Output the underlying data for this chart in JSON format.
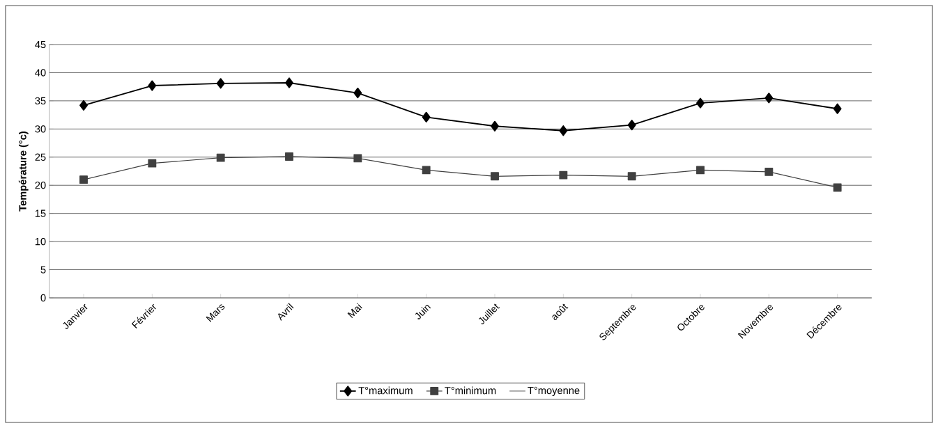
{
  "chart_data": {
    "type": "line",
    "ylabel": "Température (°c)",
    "categories": [
      "Janvier",
      "Février",
      "Mars",
      "Avril",
      "Mai",
      "Juin",
      "Juillet",
      "août",
      "Septembre",
      "Octobre",
      "Novembre",
      "Décembre"
    ],
    "series": [
      {
        "name": "T°maximum",
        "color": "#000000",
        "marker": "diamond",
        "values": [
          34.2,
          37.7,
          38.1,
          38.2,
          36.4,
          32.1,
          30.5,
          29.7,
          30.7,
          34.6,
          35.5,
          33.6
        ]
      },
      {
        "name": "T°minimum",
        "color": "#404040",
        "marker": "square",
        "values": [
          21.0,
          23.9,
          24.9,
          25.1,
          24.8,
          22.7,
          21.6,
          21.8,
          21.6,
          22.7,
          22.4,
          19.6
        ]
      },
      {
        "name": "T°moyenne",
        "values": [
          null,
          null,
          null,
          null,
          null,
          null,
          null,
          null,
          null,
          null,
          null,
          null
        ]
      }
    ],
    "ylim": [
      0,
      45
    ],
    "yticks": [
      0,
      5,
      10,
      15,
      20,
      25,
      30,
      35,
      40,
      45
    ],
    "grid": "y",
    "legend": "bottom"
  }
}
